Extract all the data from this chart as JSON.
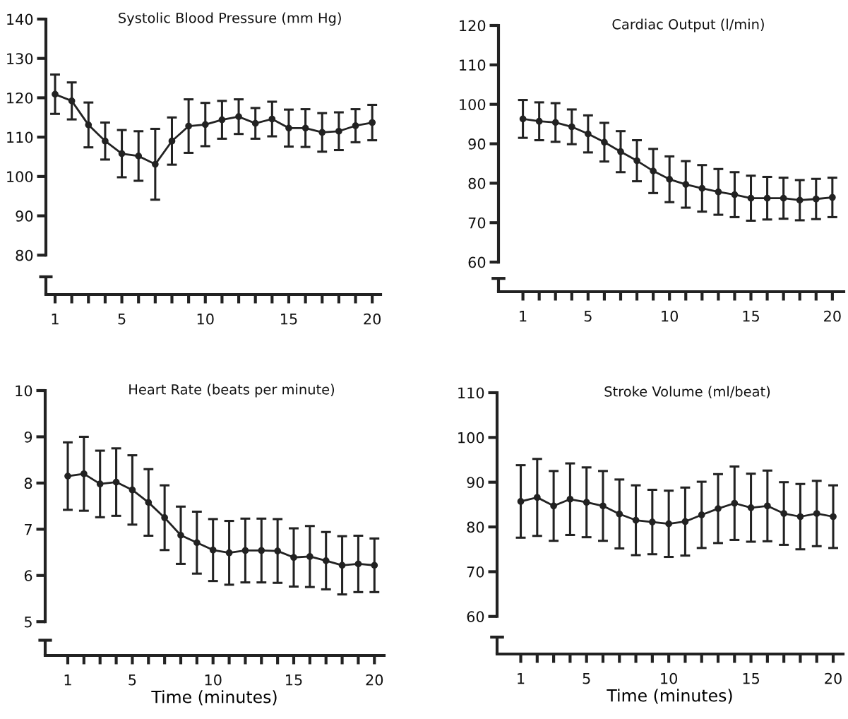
{
  "chart_data": [
    {
      "type": "line",
      "title": "Systolic Blood Pressure (mm Hg)",
      "x": [
        1,
        2,
        3,
        4,
        5,
        6,
        7,
        8,
        9,
        10,
        11,
        12,
        13,
        14,
        15,
        16,
        17,
        18,
        19,
        20
      ],
      "series": [
        {
          "color": "#222222",
          "values": [
            120.9,
            119.2,
            113.1,
            109,
            105.8,
            105.2,
            103.1,
            109,
            112.8,
            113.2,
            114.4,
            115.2,
            113.5,
            114.6,
            112.3,
            112.3,
            111.2,
            111.5,
            112.9,
            113.7
          ],
          "errors": [
            5,
            4.7,
            5.7,
            4.7,
            6,
            6.3,
            9,
            6,
            6.8,
            5.5,
            4.8,
            4.4,
            3.9,
            4.4,
            4.7,
            4.8,
            4.9,
            4.8,
            4.2,
            4.5
          ]
        }
      ],
      "xlim": [
        0.45,
        20.5
      ],
      "ylim": [
        70,
        140
      ],
      "yticks": [
        80,
        90,
        100,
        110,
        120,
        130,
        140
      ],
      "xticks": [
        1,
        {
          "value": 2,
          "label": null
        },
        {
          "value": 3,
          "label": null
        },
        {
          "value": 4,
          "label": null
        },
        5,
        {
          "value": 6,
          "label": null
        },
        {
          "value": 7,
          "label": null
        },
        {
          "value": 8,
          "label": null
        },
        {
          "value": 9,
          "label": null
        },
        10,
        {
          "value": 11,
          "label": null
        },
        {
          "value": 12,
          "label": null
        },
        {
          "value": 13,
          "label": null
        },
        {
          "value": 14,
          "label": null
        },
        15,
        {
          "value": 16,
          "label": null
        },
        {
          "value": 17,
          "label": null
        },
        {
          "value": 18,
          "label": null
        },
        {
          "value": 19,
          "label": null
        },
        20
      ],
      "marker": "circle",
      "line_style": "solid"
    },
    {
      "type": "line",
      "title": "Cardiac Output (l/min)",
      "x": [
        1,
        2,
        3,
        4,
        5,
        6,
        7,
        8,
        9,
        10,
        11,
        12,
        13,
        14,
        15,
        16,
        17,
        18,
        19,
        20
      ],
      "series": [
        {
          "color": "#222222",
          "values": [
            96.3,
            95.7,
            95.4,
            94.3,
            92.5,
            90.4,
            88,
            85.7,
            83.1,
            81,
            79.7,
            78.7,
            77.8,
            77.1,
            76.2,
            76.2,
            76.2,
            75.7,
            76,
            76.4
          ],
          "errors": [
            4.8,
            4.8,
            4.9,
            4.4,
            4.7,
            4.9,
            5.2,
            5.2,
            5.6,
            5.8,
            5.9,
            5.9,
            5.8,
            5.7,
            5.7,
            5.4,
            5.2,
            5.1,
            5.1,
            5
          ]
        }
      ],
      "xlim": [
        -0.5,
        20.7
      ],
      "ylim": [
        52.5,
        120
      ],
      "yticks": [
        60,
        70,
        80,
        90,
        100,
        110,
        120
      ],
      "xticks": [
        1,
        {
          "value": 2,
          "label": null
        },
        {
          "value": 3,
          "label": null
        },
        {
          "value": 4,
          "label": null
        },
        5,
        {
          "value": 6,
          "label": null
        },
        {
          "value": 7,
          "label": null
        },
        {
          "value": 8,
          "label": null
        },
        {
          "value": 9,
          "label": null
        },
        10,
        {
          "value": 11,
          "label": null
        },
        {
          "value": 12,
          "label": null
        },
        {
          "value": 13,
          "label": null
        },
        {
          "value": 14,
          "label": null
        },
        15,
        {
          "value": 16,
          "label": null
        },
        {
          "value": 17,
          "label": null
        },
        {
          "value": 18,
          "label": null
        },
        {
          "value": 19,
          "label": null
        },
        20
      ],
      "marker": "circle",
      "line_style": "solid"
    },
    {
      "type": "line",
      "title": "Heart Rate (beats per minute)",
      "xlabel": "Time (minutes)",
      "x": [
        1,
        2,
        3,
        4,
        5,
        6,
        7,
        8,
        9,
        10,
        11,
        12,
        13,
        14,
        15,
        16,
        17,
        18,
        19,
        20
      ],
      "series": [
        {
          "color": "#222222",
          "values": [
            8.15,
            8.2,
            7.98,
            8.02,
            7.85,
            7.58,
            7.25,
            6.87,
            6.71,
            6.55,
            6.49,
            6.54,
            6.54,
            6.53,
            6.39,
            6.41,
            6.32,
            6.22,
            6.25,
            6.22
          ],
          "errors": [
            0.73,
            0.8,
            0.72,
            0.73,
            0.75,
            0.72,
            0.7,
            0.62,
            0.67,
            0.67,
            0.69,
            0.69,
            0.69,
            0.69,
            0.63,
            0.66,
            0.62,
            0.63,
            0.61,
            0.58
          ]
        }
      ],
      "xlim": [
        -0.4,
        20.6
      ],
      "ylim": [
        4.27,
        10
      ],
      "yticks": [
        5,
        6,
        7,
        8,
        9,
        10
      ],
      "xticks": [
        1,
        {
          "value": 2,
          "label": null
        },
        {
          "value": 3,
          "label": null
        },
        {
          "value": 4,
          "label": null
        },
        5,
        {
          "value": 6,
          "label": null
        },
        {
          "value": 7,
          "label": null
        },
        {
          "value": 8,
          "label": null
        },
        {
          "value": 9,
          "label": null
        },
        10,
        {
          "value": 11,
          "label": null
        },
        {
          "value": 12,
          "label": null
        },
        {
          "value": 13,
          "label": null
        },
        {
          "value": 14,
          "label": null
        },
        15,
        {
          "value": 16,
          "label": null
        },
        {
          "value": 17,
          "label": null
        },
        {
          "value": 18,
          "label": null
        },
        {
          "value": 19,
          "label": null
        },
        20
      ],
      "marker": "circle",
      "line_style": "solid"
    },
    {
      "type": "line",
      "title": "Stroke Volume (ml/beat)",
      "xlabel": "Time (minutes)",
      "x": [
        1,
        2,
        3,
        4,
        5,
        6,
        7,
        8,
        9,
        10,
        11,
        12,
        13,
        14,
        15,
        16,
        17,
        18,
        19,
        20
      ],
      "series": [
        {
          "color": "#222222",
          "values": [
            85.7,
            86.6,
            84.7,
            86.2,
            85.5,
            84.7,
            82.9,
            81.5,
            81.1,
            80.7,
            81.2,
            82.7,
            84.1,
            85.3,
            84.3,
            84.7,
            83,
            82.3,
            83,
            82.3
          ],
          "errors": [
            8.1,
            8.6,
            7.8,
            8,
            7.8,
            7.8,
            7.7,
            7.8,
            7.2,
            7.4,
            7.6,
            7.4,
            7.7,
            8.2,
            7.6,
            7.9,
            7,
            7.3,
            7.3,
            7
          ]
        }
      ],
      "xlim": [
        -0.44,
        20.6
      ],
      "ylim": [
        51.6,
        110
      ],
      "yticks": [
        60,
        70,
        80,
        90,
        100,
        110
      ],
      "xticks": [
        1,
        {
          "value": 2,
          "label": null
        },
        {
          "value": 3,
          "label": null
        },
        {
          "value": 4,
          "label": null
        },
        5,
        {
          "value": 6,
          "label": null
        },
        {
          "value": 7,
          "label": null
        },
        {
          "value": 8,
          "label": null
        },
        {
          "value": 9,
          "label": null
        },
        10,
        {
          "value": 11,
          "label": null
        },
        {
          "value": 12,
          "label": null
        },
        {
          "value": 13,
          "label": null
        },
        {
          "value": 14,
          "label": null
        },
        15,
        {
          "value": 16,
          "label": null
        },
        {
          "value": 17,
          "label": null
        },
        {
          "value": 18,
          "label": null
        },
        {
          "value": 19,
          "label": null
        },
        20
      ],
      "marker": "circle",
      "line_style": "solid"
    }
  ]
}
